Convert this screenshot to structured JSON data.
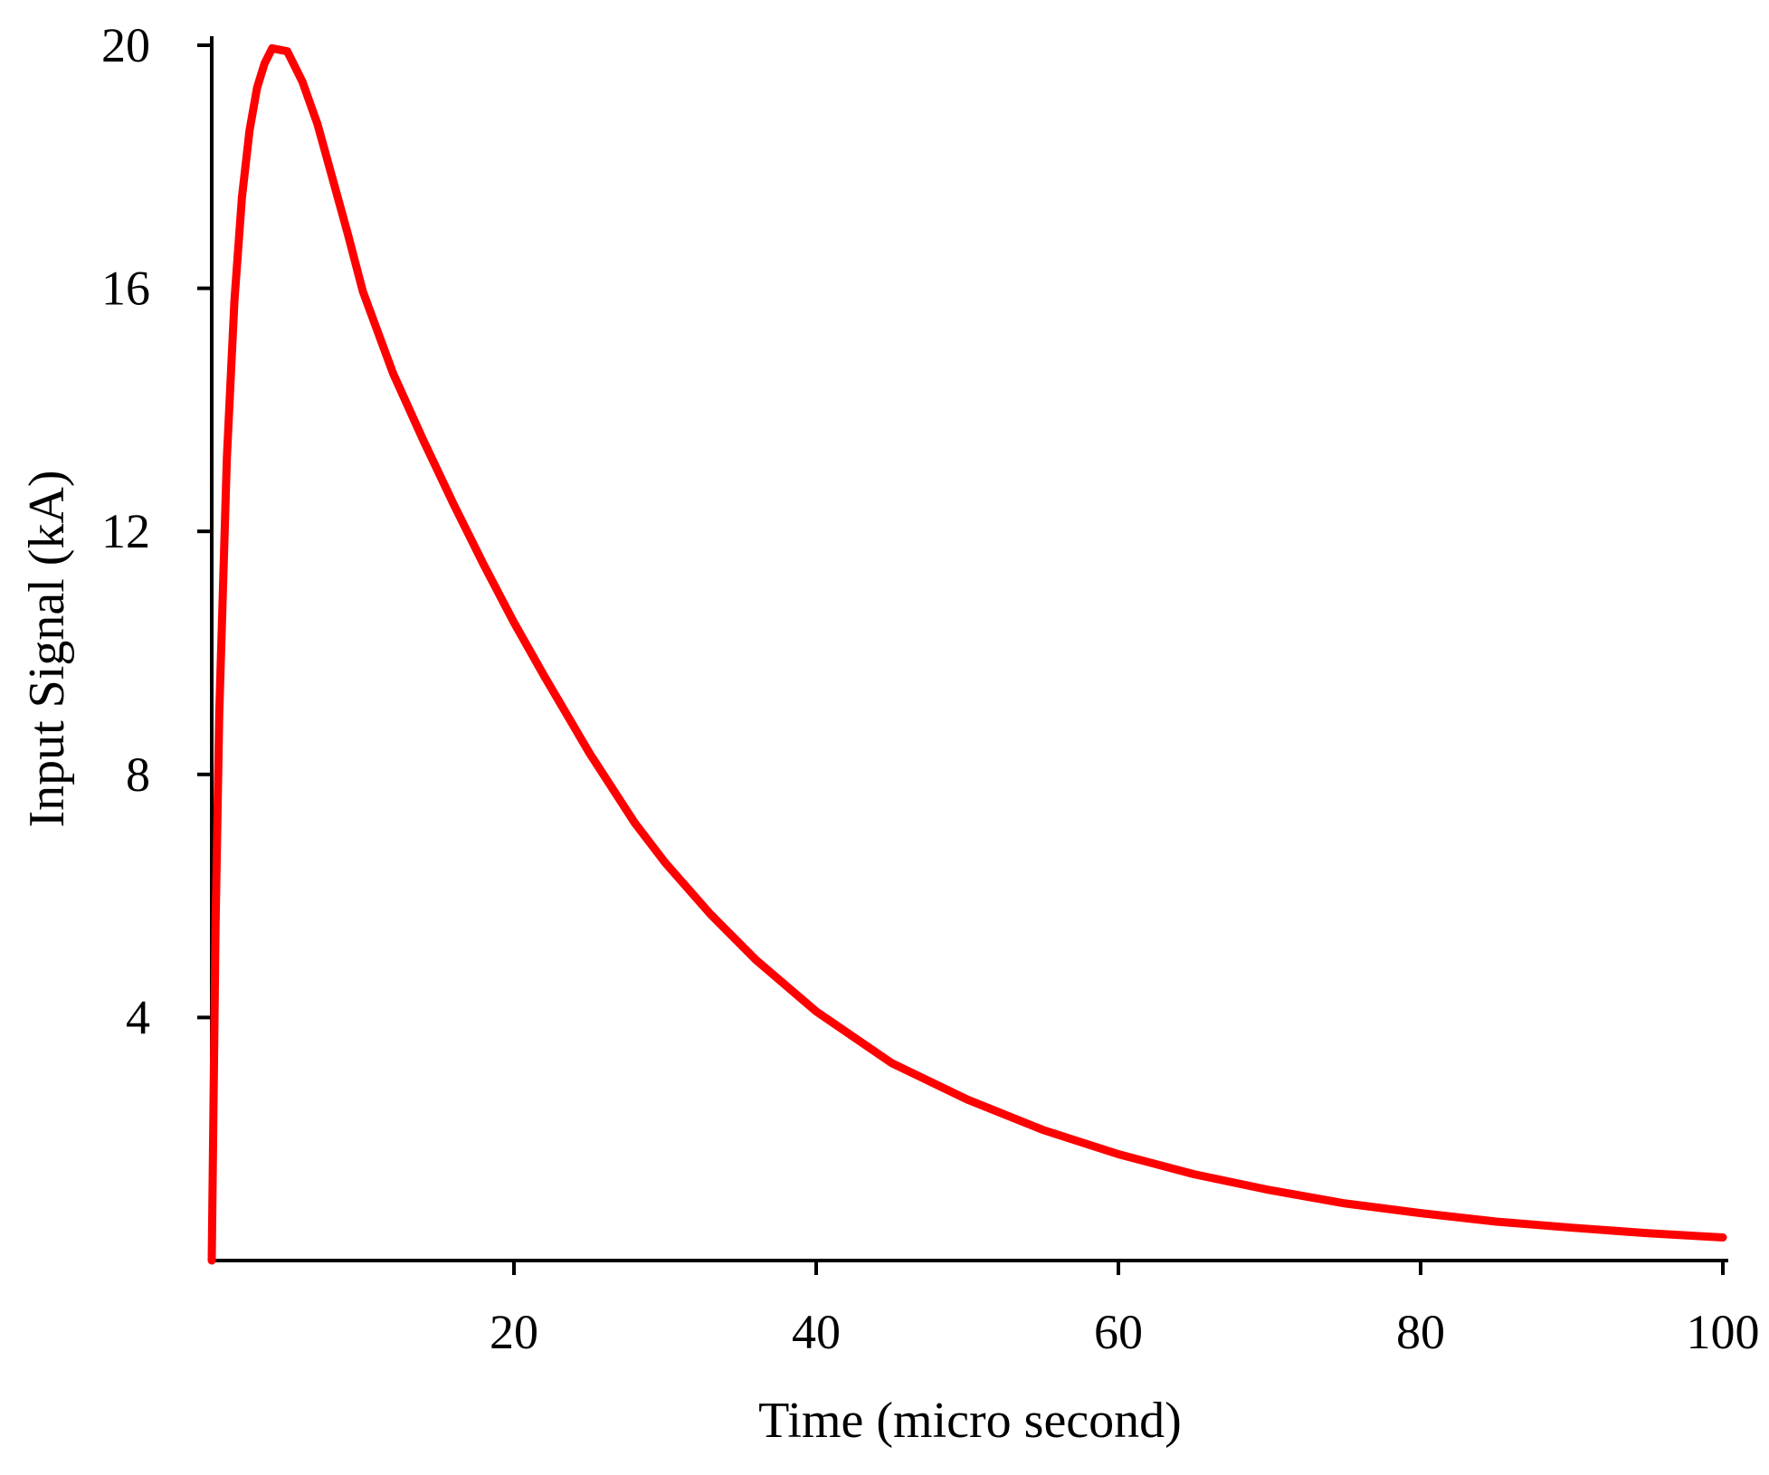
{
  "chart_data": {
    "type": "line",
    "xlabel": "Time (micro second)",
    "ylabel": "Input Signal (kA)",
    "xlim": [
      0,
      100
    ],
    "ylim": [
      0,
      20
    ],
    "xticks": [
      20,
      40,
      60,
      80,
      100
    ],
    "xtick_labels": [
      "20",
      "40",
      "60",
      "80",
      "100"
    ],
    "yticks": [
      4,
      8,
      12,
      16,
      20
    ],
    "ytick_labels": [
      "4",
      "8",
      "12",
      "16",
      "20"
    ],
    "grid": false,
    "series": [
      {
        "color": "#ff0000",
        "x": [
          0,
          0.25,
          0.5,
          1,
          1.5,
          2,
          2.5,
          3,
          3.5,
          4,
          5,
          6,
          7,
          8,
          9,
          10,
          12,
          14,
          16,
          18,
          20,
          22,
          25,
          28,
          30,
          33,
          36,
          40,
          45,
          50,
          55,
          60,
          65,
          70,
          75,
          80,
          85,
          90,
          95,
          100
        ],
        "y": [
          0,
          5.5,
          9.0,
          13.2,
          15.8,
          17.5,
          18.6,
          19.3,
          19.7,
          19.95,
          19.9,
          19.4,
          18.7,
          17.8,
          16.9,
          15.95,
          14.6,
          13.5,
          12.45,
          11.45,
          10.5,
          9.62,
          8.35,
          7.2,
          6.55,
          5.7,
          4.95,
          4.1,
          3.25,
          2.65,
          2.15,
          1.75,
          1.42,
          1.16,
          0.94,
          0.78,
          0.64,
          0.54,
          0.45,
          0.38
        ]
      }
    ]
  }
}
